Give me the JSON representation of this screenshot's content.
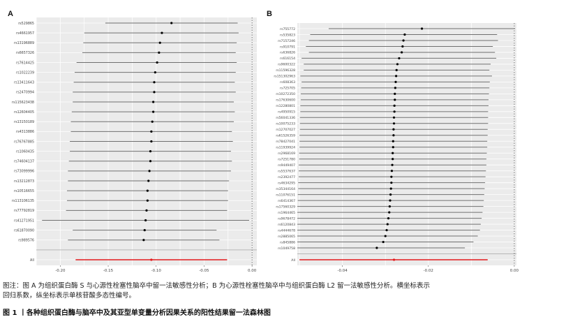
{
  "chart_data": [
    {
      "panel": "A",
      "type": "scatter",
      "xlim": [
        -0.225,
        0.005
      ],
      "xticks": [
        -0.2,
        -0.15,
        -0.1,
        -0.05,
        0.0
      ],
      "xtick_labels": [
        "-0.20",
        "-0.15",
        "-0.10",
        "-0.05",
        "0.00"
      ],
      "grid": true,
      "snps": [
        {
          "label": "rs529865",
          "beta": -0.084,
          "lo": -0.153,
          "hi": -0.015
        },
        {
          "label": "rs4661957",
          "beta": -0.094,
          "lo": -0.175,
          "hi": -0.014
        },
        {
          "label": "rs13196889",
          "beta": -0.096,
          "lo": -0.176,
          "hi": -0.016
        },
        {
          "label": "rs6657326",
          "beta": -0.097,
          "lo": -0.177,
          "hi": -0.017
        },
        {
          "label": "rs7614425",
          "beta": -0.099,
          "lo": -0.183,
          "hi": -0.016
        },
        {
          "label": "rs1022239",
          "beta": -0.101,
          "lo": -0.185,
          "hi": -0.017
        },
        {
          "label": "rs13411643",
          "beta": -0.102,
          "lo": -0.186,
          "hi": -0.018
        },
        {
          "label": "rs2470994",
          "beta": -0.102,
          "lo": -0.187,
          "hi": -0.017
        },
        {
          "label": "rs115623438",
          "beta": -0.103,
          "lo": -0.187,
          "hi": -0.019
        },
        {
          "label": "rs12604405",
          "beta": -0.103,
          "lo": -0.188,
          "hi": -0.018
        },
        {
          "label": "rs13150189",
          "beta": -0.104,
          "lo": -0.189,
          "hi": -0.019
        },
        {
          "label": "rs4313886",
          "beta": -0.105,
          "lo": -0.189,
          "hi": -0.021
        },
        {
          "label": "rs76767885",
          "beta": -0.105,
          "lo": -0.19,
          "hi": -0.02
        },
        {
          "label": "rs1060435",
          "beta": -0.106,
          "lo": -0.19,
          "hi": -0.022
        },
        {
          "label": "rs74604137",
          "beta": -0.106,
          "lo": -0.191,
          "hi": -0.021
        },
        {
          "label": "rs73099996",
          "beta": -0.107,
          "lo": -0.192,
          "hi": -0.022
        },
        {
          "label": "rs13212873",
          "beta": -0.108,
          "lo": -0.192,
          "hi": -0.024
        },
        {
          "label": "rs10516655",
          "beta": -0.109,
          "lo": -0.193,
          "hi": -0.025
        },
        {
          "label": "rs113106135",
          "beta": -0.109,
          "lo": -0.193,
          "hi": -0.025
        },
        {
          "label": "rs77792819",
          "beta": -0.11,
          "lo": -0.194,
          "hi": -0.026
        },
        {
          "label": "rs41271951",
          "beta": -0.111,
          "lo": -0.219,
          "hi": -0.003
        },
        {
          "label": "rs61870090",
          "beta": -0.112,
          "lo": -0.187,
          "hi": -0.037
        },
        {
          "label": "rs989576",
          "beta": -0.113,
          "lo": -0.192,
          "hi": -0.034
        }
      ],
      "overall": {
        "label": "All",
        "beta": -0.105,
        "lo": -0.184,
        "hi": -0.026
      }
    },
    {
      "panel": "B",
      "type": "scatter",
      "xlim": [
        -0.0505,
        0.0005
      ],
      "xticks": [
        -0.04,
        -0.02,
        0.0
      ],
      "xtick_labels": [
        "-0.04",
        "-0.02",
        "0.00"
      ],
      "grid": true,
      "snps": [
        {
          "label": "rs755772",
          "beta": -0.0215,
          "lo": -0.0432,
          "hi": 0.0002
        },
        {
          "label": "rs535823",
          "beta": -0.0255,
          "lo": -0.0475,
          "hi": -0.004
        },
        {
          "label": "rs7157246",
          "beta": -0.0258,
          "lo": -0.0478,
          "hi": -0.0038
        },
        {
          "label": "rs910791",
          "beta": -0.026,
          "lo": -0.0485,
          "hi": -0.005
        },
        {
          "label": "rs636826",
          "beta": -0.0262,
          "lo": -0.0478,
          "hi": -0.0045
        },
        {
          "label": "rs616154",
          "beta": -0.0268,
          "lo": -0.0495,
          "hi": -0.0042
        },
        {
          "label": "rs9600322",
          "beta": -0.0272,
          "lo": -0.049,
          "hi": -0.0055
        },
        {
          "label": "rs11596328",
          "beta": -0.0274,
          "lo": -0.049,
          "hi": -0.0058
        },
        {
          "label": "rs151302963",
          "beta": -0.0275,
          "lo": -0.0498,
          "hi": -0.0052
        },
        {
          "label": "rs608363",
          "beta": -0.0276,
          "lo": -0.0495,
          "hi": -0.0057
        },
        {
          "label": "rs725705",
          "beta": -0.0277,
          "lo": -0.0496,
          "hi": -0.0058
        },
        {
          "label": "rs10272350",
          "beta": -0.0278,
          "lo": -0.0497,
          "hi": -0.0059
        },
        {
          "label": "rs17630600",
          "beta": -0.0278,
          "lo": -0.0497,
          "hi": -0.006
        },
        {
          "label": "rs12280801",
          "beta": -0.0279,
          "lo": -0.0498,
          "hi": -0.006
        },
        {
          "label": "rs4950915",
          "beta": -0.0279,
          "lo": -0.0498,
          "hi": -0.0061
        },
        {
          "label": "rs56041336",
          "beta": -0.028,
          "lo": -0.0499,
          "hi": -0.0061
        },
        {
          "label": "rs10075233",
          "beta": -0.028,
          "lo": -0.0499,
          "hi": -0.0061
        },
        {
          "label": "rs12707027",
          "beta": -0.0281,
          "lo": -0.0499,
          "hi": -0.0062
        },
        {
          "label": "rs61526359",
          "beta": -0.0281,
          "lo": -0.05,
          "hi": -0.0062
        },
        {
          "label": "rs78427041",
          "beta": -0.0282,
          "lo": -0.05,
          "hi": -0.0063
        },
        {
          "label": "rs11939924",
          "beta": -0.0282,
          "lo": -0.05,
          "hi": -0.0063
        },
        {
          "label": "rs2968169",
          "beta": -0.0283,
          "lo": -0.0501,
          "hi": -0.0064
        },
        {
          "label": "rs7251780",
          "beta": -0.0283,
          "lo": -0.0501,
          "hi": -0.0065
        },
        {
          "label": "rs9449407",
          "beta": -0.0284,
          "lo": -0.0502,
          "hi": -0.0065
        },
        {
          "label": "rs5537637",
          "beta": -0.0285,
          "lo": -0.0502,
          "hi": -0.0066
        },
        {
          "label": "rs2392477",
          "beta": -0.0286,
          "lo": -0.0502,
          "hi": -0.0067
        },
        {
          "label": "rs4634295",
          "beta": -0.0286,
          "lo": -0.0503,
          "hi": -0.0068
        },
        {
          "label": "rs35344164",
          "beta": -0.0287,
          "lo": -0.0503,
          "hi": -0.0069
        },
        {
          "label": "rs11076151",
          "beta": -0.0288,
          "lo": -0.0504,
          "hi": -0.007
        },
        {
          "label": "rs6414367",
          "beta": -0.0289,
          "lo": -0.0504,
          "hi": -0.0071
        },
        {
          "label": "rs17560329",
          "beta": -0.029,
          "lo": -0.0505,
          "hi": -0.0072
        },
        {
          "label": "rs1964465",
          "beta": -0.0291,
          "lo": -0.0505,
          "hi": -0.0074
        },
        {
          "label": "rs9678472",
          "beta": -0.0293,
          "lo": -0.0505,
          "hi": -0.0076
        },
        {
          "label": "rs6120843",
          "beta": -0.0295,
          "lo": -0.0505,
          "hi": -0.0078
        },
        {
          "label": "rs4444678",
          "beta": -0.0297,
          "lo": -0.0505,
          "hi": -0.008
        },
        {
          "label": "rs2885065",
          "beta": -0.03,
          "lo": -0.0505,
          "hi": -0.0085
        },
        {
          "label": "rs845886",
          "beta": -0.0305,
          "lo": -0.0505,
          "hi": -0.0095
        },
        {
          "label": "rs1049758",
          "beta": -0.032,
          "lo": -0.0505,
          "hi": -0.0115
        }
      ],
      "overall": {
        "label": "All",
        "beta": -0.028,
        "lo": -0.05,
        "hi": -0.0062
      }
    }
  ],
  "caption": {
    "line1": "图注：图 A 为组织蛋白酶 S 与心源性栓塞性脑卒中留一法敏感性分析；B 为心源性栓塞性脑卒中与组织蛋白酶 L2 留一法敏感性分析。横坐标表示",
    "line2": "回归系数，纵坐标表示单核苷酸多态性编号。",
    "title": "图 1  丨各种组织蛋白酶与脑卒中及其亚型单变量分析因果关系的阳性结果留一法森林图"
  },
  "colors": {
    "panel_bg": "#ebebeb",
    "grid": "#ffffff",
    "ci_line": "#6f6f6f",
    "point": "#000000",
    "overall_line": "#e31a1c",
    "ref_line": "#555555"
  }
}
